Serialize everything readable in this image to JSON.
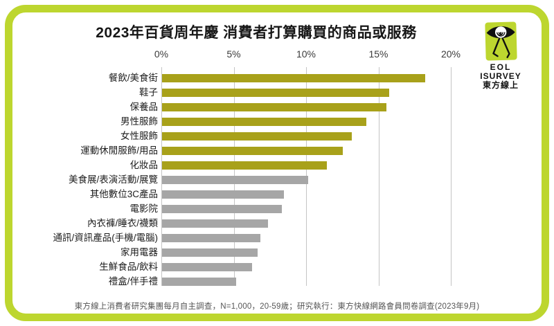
{
  "title": "2023年百貨周年慶 消費者打算購買的商品或服務",
  "logo": {
    "icon": "eye-spiral-creature-icon",
    "line1": "EOL",
    "line2": "ISURVEY",
    "line3": "東方線上",
    "bg_color": "#BDD62F"
  },
  "footer": "東方線上消費者研究集團每月自主調查，N=1,000，20-59歲；研究執行：東方快線網路會員問卷調查(2023年9月)",
  "colors": {
    "bar_highlight": "#A8A11A",
    "bar_default": "#A6A6A6",
    "frame_green": "#BDD62F",
    "gridline": "#C4C4C4"
  },
  "chart_data": {
    "type": "bar",
    "orientation": "horizontal",
    "title": "2023年百貨周年慶 消費者打算購買的商品或服務",
    "xlabel": "",
    "ylabel": "",
    "categories": [
      "餐飲/美食街",
      "鞋子",
      "保養品",
      "男性服飾",
      "女性服飾",
      "運動休閒服飾/用品",
      "化妝品",
      "美食展/表演活動/展覽",
      "其他數位3C產品",
      "電影院",
      "內衣褲/睡衣/襪類",
      "通訊/資訊產品(手機/電腦)",
      "家用電器",
      "生鮮食品/飲料",
      "禮盒/伴手禮"
    ],
    "values": [
      18.2,
      15.7,
      15.5,
      14.1,
      13.1,
      12.5,
      11.4,
      10.1,
      8.4,
      8.3,
      7.3,
      6.8,
      6.6,
      6.2,
      5.1
    ],
    "unit": "%",
    "highlight_count": 7,
    "x_ticks": [
      "0%",
      "5%",
      "10%",
      "15%",
      "20%"
    ],
    "x_tick_values": [
      0,
      5,
      10,
      15,
      20
    ],
    "xlim": [
      0,
      20.5
    ],
    "grid": true,
    "legend": "none"
  }
}
